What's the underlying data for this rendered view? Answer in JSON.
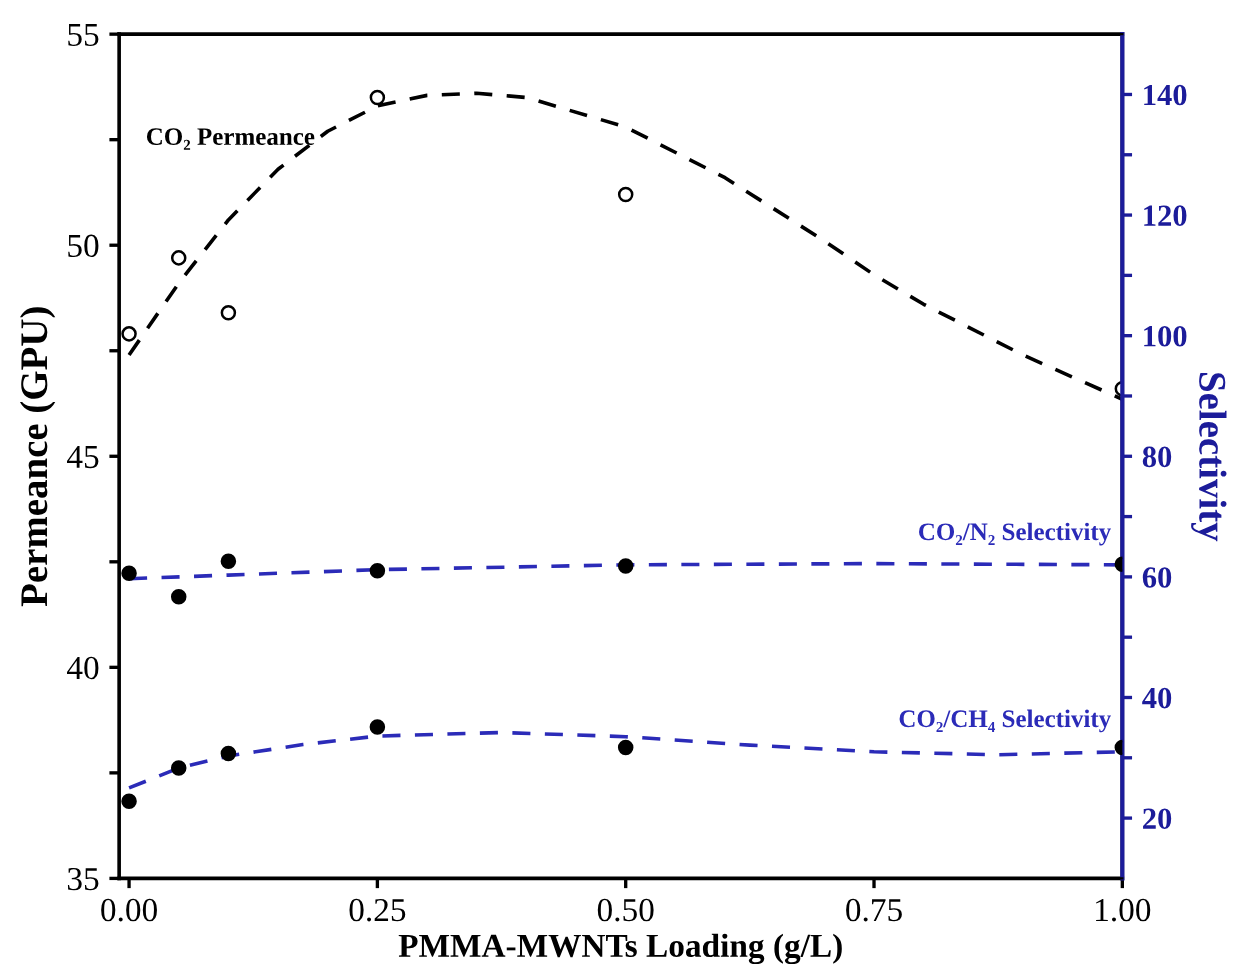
{
  "chart_data": {
    "type": "scatter",
    "xlabel": "PMMA-MWNTs Loading (g/L)",
    "ylabel": "Permeance (GPU)",
    "y2label": "Selectivity",
    "xlim": [
      -0.01,
      1.0
    ],
    "xticks": [
      {
        "value": 0,
        "label": "0.00"
      },
      {
        "value": 0.25,
        "label": "0.25"
      },
      {
        "value": 0.5,
        "label": "0.50"
      },
      {
        "value": 0.75,
        "label": "0.75"
      },
      {
        "value": 1.0,
        "label": "1.00"
      }
    ],
    "ylim": [
      35,
      55
    ],
    "yticks": [
      35,
      {
        "value": 37.5,
        "label": null
      },
      40,
      {
        "value": 42.5,
        "label": null
      },
      45,
      {
        "value": 47.5,
        "label": null
      },
      50,
      {
        "value": 52.5,
        "label": null
      },
      55
    ],
    "y2lim": [
      10,
      150
    ],
    "y2ticks": [
      20,
      {
        "value": 30,
        "label": null
      },
      40,
      {
        "value": 50,
        "label": null
      },
      60,
      {
        "value": 70,
        "label": null
      },
      80,
      {
        "value": 90,
        "label": null
      },
      100,
      {
        "value": 110,
        "label": null
      },
      120,
      {
        "value": 130,
        "label": null
      },
      140
    ],
    "grid": false,
    "legend": false,
    "marker": "circle",
    "series": [
      {
        "axis": "y",
        "color": "#000000",
        "x": [
          0,
          0.05,
          0.1,
          0.25,
          0.5,
          1.0
        ],
        "values": [
          47.9,
          49.7,
          48.4,
          53.5,
          51.2,
          46.6
        ]
      },
      {
        "axis": "y2",
        "color": "#000000",
        "x": [
          0,
          0.05,
          0.1,
          0.25,
          0.5,
          1.0
        ],
        "values": [
          60.6,
          56.7,
          62.6,
          61.0,
          61.8,
          62.1
        ]
      },
      {
        "axis": "y2",
        "color": "#000000",
        "x": [
          0,
          0.05,
          0.1,
          0.25,
          0.5,
          1.0
        ],
        "values": [
          22.8,
          28.3,
          30.7,
          35.1,
          31.7,
          31.7
        ]
      },
      {
        "type": "line",
        "axis": "y",
        "name": "CO₂ Permeance",
        "color": "#000000",
        "line_style": "dashed",
        "marker": "none",
        "x": [
          0,
          0.05,
          0.1,
          0.15,
          0.2,
          0.25,
          0.3,
          0.35,
          0.4,
          0.5,
          0.6,
          0.7,
          0.75,
          0.8,
          0.9,
          1.0
        ],
        "values": [
          47.4,
          49.1,
          50.6,
          51.8,
          52.7,
          53.3,
          53.55,
          53.6,
          53.5,
          52.8,
          51.6,
          50.1,
          49.3,
          48.6,
          47.4,
          46.35
        ]
      },
      {
        "type": "line",
        "axis": "y2",
        "name": "CO₂/N₂ Selectivity",
        "color": "#2b2bb8",
        "line_style": "dashed",
        "marker": "none",
        "x": [
          0,
          0.1,
          0.25,
          0.5,
          0.75,
          1.0
        ],
        "values": [
          59.7,
          60.3,
          61.2,
          62.0,
          62.2,
          62.0
        ]
      },
      {
        "type": "line",
        "axis": "y2",
        "name": "CO₂/CH₄ Selectivity",
        "color": "#2b2bb8",
        "line_style": "dashed",
        "marker": "none",
        "x": [
          0,
          0.05,
          0.1,
          0.175,
          0.25,
          0.375,
          0.5,
          0.625,
          0.75,
          0.875,
          1.0
        ],
        "values": [
          25.0,
          28.3,
          30.3,
          32.2,
          33.6,
          34.2,
          33.5,
          32.1,
          31.0,
          30.5,
          31.0
        ]
      }
    ]
  }
}
